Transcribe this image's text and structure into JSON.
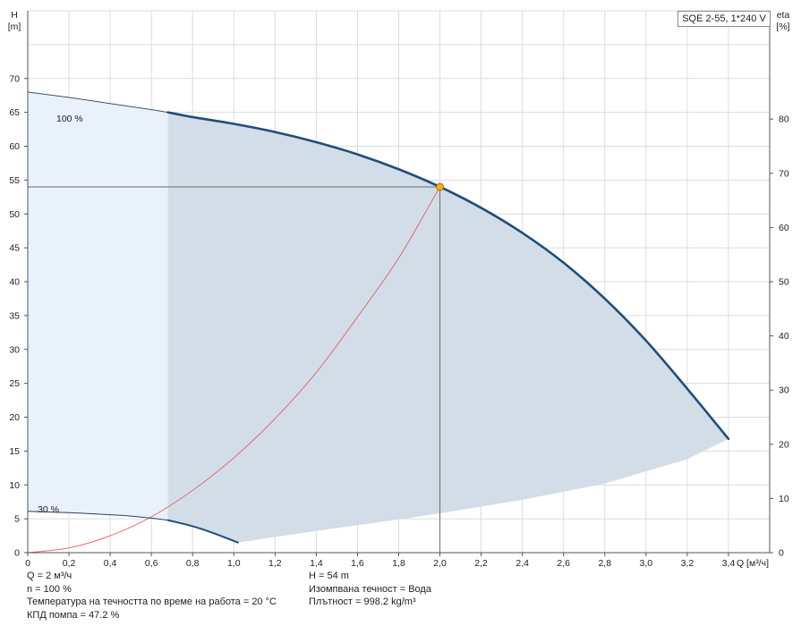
{
  "chart_data": {
    "type": "line",
    "title_box": "SQE 2-55, 1*240 V",
    "x_axis": {
      "label": "Q [м³/ч]",
      "range": [
        0,
        3.6
      ],
      "ticks": [
        0,
        0.2,
        0.4,
        0.6,
        0.8,
        1.0,
        1.2,
        1.4,
        1.6,
        1.8,
        2.0,
        2.2,
        2.4,
        2.6,
        2.8,
        3.0,
        3.2,
        3.4,
        3.6
      ],
      "tick_labels": [
        "0",
        "0,2",
        "0,4",
        "0,6",
        "0,8",
        "1,0",
        "1,2",
        "1,4",
        "1,6",
        "1,8",
        "2,0",
        "2,2",
        "2,4",
        "2,6",
        "2,8",
        "3,0",
        "3,2",
        "3,4"
      ]
    },
    "y_left": {
      "label_top": "H",
      "label_unit": "[m]",
      "range": [
        0,
        80
      ],
      "ticks": [
        0,
        5,
        10,
        15,
        20,
        25,
        30,
        35,
        40,
        45,
        50,
        55,
        60,
        65,
        70
      ]
    },
    "y_right": {
      "label_top": "eta",
      "label_unit": "[%]",
      "range": [
        0,
        100
      ],
      "ticks": [
        0,
        10,
        20,
        30,
        40,
        50,
        60,
        70,
        80
      ]
    },
    "grid": true,
    "series": [
      {
        "name": "100 %",
        "role": "head-100-thin",
        "x": [
          0,
          0.2,
          0.4,
          0.6,
          0.68
        ],
        "y": [
          68,
          67.2,
          66.3,
          65.4,
          65
        ]
      },
      {
        "name": "100 %",
        "role": "head-100-bold",
        "x": [
          0.68,
          0.8,
          1.0,
          1.2,
          1.4,
          1.6,
          1.8,
          2.0,
          2.2,
          2.4,
          2.6,
          2.8,
          3.0,
          3.2,
          3.4
        ],
        "y": [
          65,
          64.3,
          63.3,
          62.1,
          60.6,
          58.8,
          56.6,
          54,
          50.9,
          47.2,
          42.8,
          37.5,
          31.3,
          24.2,
          16.8
        ]
      },
      {
        "name": "30 %",
        "role": "head-30-thin",
        "x": [
          0,
          0.2,
          0.4,
          0.5,
          0.6,
          0.68
        ],
        "y": [
          6.1,
          5.9,
          5.6,
          5.4,
          5.1,
          4.8
        ]
      },
      {
        "name": "30 %",
        "role": "head-30-bold",
        "x": [
          0.68,
          0.8,
          0.9,
          1.02
        ],
        "y": [
          4.8,
          3.9,
          2.9,
          1.5
        ]
      },
      {
        "name": "",
        "role": "system-curve",
        "x": [
          0,
          0.2,
          0.4,
          0.6,
          0.8,
          1.0,
          1.2,
          1.4,
          1.6,
          1.8,
          2.0
        ],
        "y": [
          0,
          0.7,
          2.5,
          5.3,
          9.2,
          14,
          19.8,
          26.6,
          34.8,
          43.5,
          54
        ]
      }
    ],
    "operating_area": {
      "bottom_boundary": {
        "x": [
          1.02,
          1.4,
          1.8,
          2.0,
          2.4,
          2.8,
          3.2,
          3.4
        ],
        "y": [
          1.5,
          3.2,
          4.9,
          5.8,
          7.8,
          10.2,
          13.8,
          16.8
        ]
      }
    },
    "operating_point": {
      "q": 2.0,
      "h": 54
    },
    "series_labels": [
      "100 %",
      "30 %"
    ]
  },
  "info": {
    "left": [
      "Q = 2 м³/ч",
      "n = 100 %",
      "Температура на течността по време на работа = 20 °C",
      "КПД помпа = 47.2 %"
    ],
    "right": [
      "H = 54 m",
      "Изомпвана течност = Вода",
      "Плътност = 998.2 kg/m³"
    ]
  },
  "colors": {
    "grid": "#dcdcdc",
    "axis": "#555555",
    "curve_bold": "#1f4e79",
    "curve_thin": "#2a3f5a",
    "fill_main": "#d3dde8",
    "fill_light": "#e9f1fa",
    "system_curve": "#e85a5a",
    "op_point": "#f2b21b",
    "cross_line": "#6b6b6b"
  }
}
